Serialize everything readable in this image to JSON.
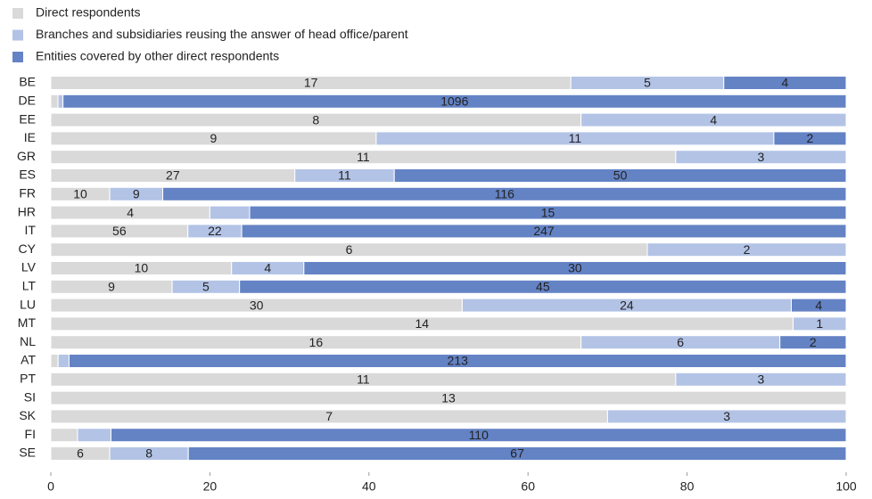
{
  "chart_data": {
    "type": "bar",
    "orientation": "horizontal",
    "stacking": "percent",
    "categories": [
      "BE",
      "DE",
      "EE",
      "IE",
      "GR",
      "ES",
      "FR",
      "HR",
      "IT",
      "CY",
      "LV",
      "LT",
      "LU",
      "MT",
      "NL",
      "AT",
      "PT",
      "SI",
      "SK",
      "FI",
      "SE"
    ],
    "series": [
      {
        "name": "Direct respondents",
        "color": "#d9d9d9",
        "values": [
          17,
          10,
          8,
          9,
          11,
          27,
          10,
          4,
          56,
          6,
          10,
          9,
          30,
          14,
          16,
          2,
          11,
          13,
          7,
          4,
          6
        ]
      },
      {
        "name": "Branches and subsidiaries reusing the answer of head office/parent",
        "color": "#b3c3e6",
        "values": [
          5,
          7,
          4,
          11,
          3,
          11,
          9,
          1,
          22,
          2,
          4,
          5,
          24,
          1,
          6,
          3,
          3,
          0,
          3,
          5,
          8
        ]
      },
      {
        "name": "Entities covered by other direct respondents",
        "color": "#6483c5",
        "values": [
          4,
          1096,
          0,
          2,
          0,
          50,
          116,
          15,
          247,
          0,
          30,
          45,
          4,
          0,
          2,
          213,
          0,
          0,
          0,
          110,
          67
        ]
      }
    ],
    "xlim": [
      0,
      100
    ],
    "xticks": [
      0,
      20,
      40,
      60,
      80,
      100
    ],
    "legend": "top-left"
  }
}
